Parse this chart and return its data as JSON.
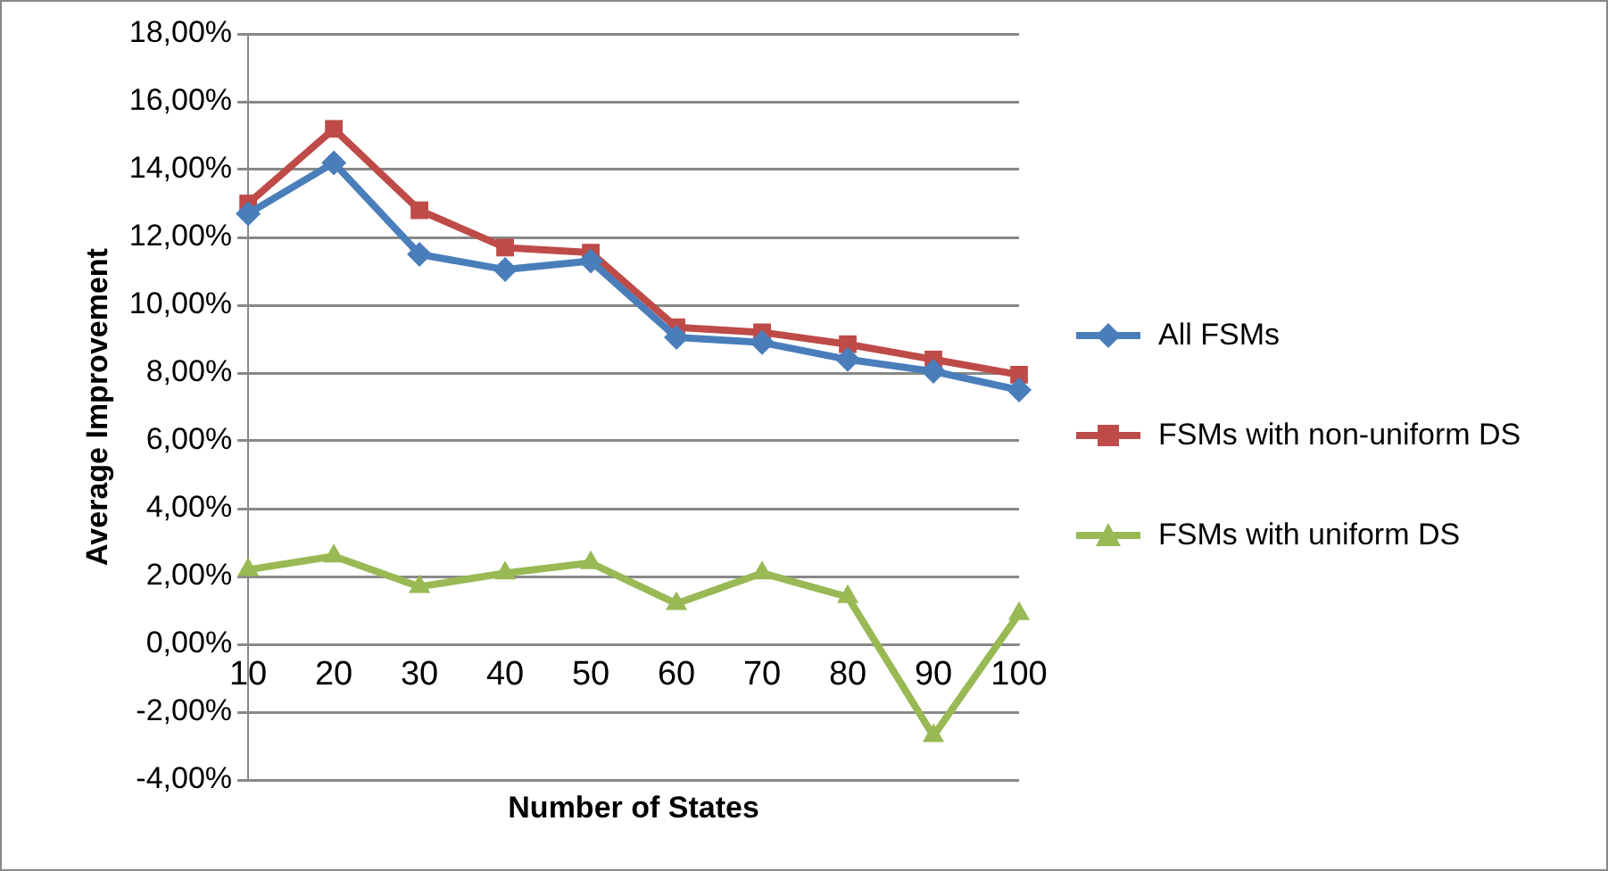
{
  "chart_data": {
    "type": "line",
    "xlabel": "Number of States",
    "ylabel": "Average Improvement",
    "categories": [
      "10",
      "20",
      "30",
      "40",
      "50",
      "60",
      "70",
      "80",
      "90",
      "100"
    ],
    "series": [
      {
        "name": "All FSMs",
        "color": "#4a7ebb",
        "marker": "diamond",
        "values": [
          12.7,
          14.2,
          11.5,
          11.05,
          11.3,
          9.05,
          8.9,
          8.4,
          8.05,
          7.5
        ]
      },
      {
        "name": "FSMs with non-uniform DS",
        "color": "#be4b48",
        "marker": "square",
        "values": [
          13.0,
          15.2,
          12.8,
          11.7,
          11.55,
          9.35,
          9.2,
          8.85,
          8.4,
          7.95
        ]
      },
      {
        "name": "FSMs with uniform DS",
        "color": "#98b954",
        "marker": "triangle",
        "values": [
          2.2,
          2.6,
          1.7,
          2.1,
          2.4,
          1.2,
          2.1,
          1.4,
          -2.7,
          0.9
        ]
      }
    ],
    "ylim": [
      -4,
      18
    ],
    "yticks": [
      {
        "value": -4,
        "label": "-4,00%"
      },
      {
        "value": -2,
        "label": "-2,00%"
      },
      {
        "value": 0,
        "label": "0,00%"
      },
      {
        "value": 2,
        "label": "2,00%"
      },
      {
        "value": 4,
        "label": "4,00%"
      },
      {
        "value": 6,
        "label": "6,00%"
      },
      {
        "value": 8,
        "label": "8,00%"
      },
      {
        "value": 10,
        "label": "10,00%"
      },
      {
        "value": 12,
        "label": "12,00%"
      },
      {
        "value": 14,
        "label": "14,00%"
      },
      {
        "value": 16,
        "label": "16,00%"
      },
      {
        "value": 18,
        "label": "18,00%"
      }
    ],
    "grid": "y",
    "legend": "right",
    "line_style": "solid"
  }
}
